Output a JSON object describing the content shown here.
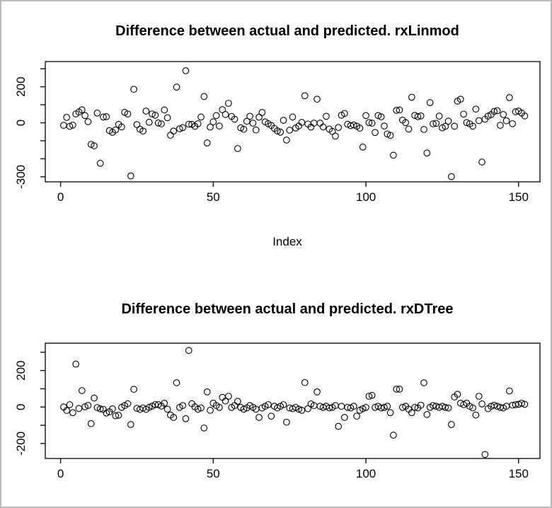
{
  "window": {
    "background": "#ffffff",
    "frame_color": "#b9b9b9",
    "point_color": "#000000",
    "axis_color": "#000000"
  },
  "chart_data": [
    {
      "id": "linmod",
      "type": "scatter",
      "title": "Difference between actual and predicted. rxLinmod",
      "xlabel": "Index",
      "ylabel": "",
      "marker": "open-circle",
      "grid": false,
      "xlim": [
        -5,
        157
      ],
      "ylim": [
        -328,
        340
      ],
      "x_ticks": [
        {
          "v": 0,
          "label": "0"
        },
        {
          "v": 50,
          "label": "50"
        },
        {
          "v": 100,
          "label": "100"
        },
        {
          "v": 150,
          "label": "150"
        }
      ],
      "y_ticks": [
        {
          "v": 300,
          "label": ""
        },
        {
          "v": 200,
          "label": "200"
        },
        {
          "v": 100,
          "label": ""
        },
        {
          "v": 0,
          "label": "0"
        },
        {
          "v": -100,
          "label": ""
        },
        {
          "v": -200,
          "label": ""
        },
        {
          "v": -300,
          "label": "-300"
        }
      ],
      "x_start": 1,
      "values": [
        -14,
        30,
        -20,
        -13,
        49,
        60,
        72,
        40,
        6,
        -120,
        -128,
        54,
        -225,
        32,
        34,
        -44,
        -53,
        -40,
        -9,
        -23,
        58,
        49,
        -295,
        186,
        -10,
        -36,
        -46,
        65,
        3,
        49,
        42,
        -1,
        -6,
        71,
        28,
        -69,
        -46,
        198,
        -33,
        -27,
        289,
        -8,
        -9,
        -20,
        -5,
        32,
        146,
        -112,
        -24,
        5,
        40,
        -18,
        73,
        46,
        108,
        35,
        20,
        -143,
        -28,
        -36,
        8,
        36,
        -2,
        -40,
        31,
        57,
        5,
        -5,
        -15,
        -31,
        -45,
        -52,
        14,
        -96,
        -41,
        32,
        -29,
        -18,
        2,
        150,
        -7,
        -24,
        -2,
        131,
        -2,
        -23,
        36,
        -35,
        -48,
        -74,
        -26,
        42,
        52,
        -8,
        -16,
        -12,
        -19,
        -30,
        -135,
        40,
        1,
        -2,
        -54,
        40,
        33,
        -18,
        -62,
        -70,
        -180,
        69,
        71,
        15,
        1,
        -35,
        142,
        41,
        34,
        38,
        -37,
        -168,
        112,
        -6,
        -3,
        37,
        -28,
        -20,
        9,
        -299,
        -19,
        120,
        131,
        48,
        1,
        -6,
        -19,
        76,
        12,
        -218,
        20,
        37,
        45,
        63,
        67,
        -14,
        46,
        11,
        140,
        -5,
        61,
        65,
        54,
        38
      ]
    },
    {
      "id": "dtree",
      "type": "scatter",
      "title": "Difference between actual and predicted. rxDTree",
      "xlabel": "",
      "ylabel": "",
      "marker": "open-circle",
      "grid": false,
      "xlim": [
        -5,
        157
      ],
      "ylim": [
        -282,
        350
      ],
      "x_ticks": [
        {
          "v": 0,
          "label": "0"
        },
        {
          "v": 50,
          "label": "50"
        },
        {
          "v": 100,
          "label": "100"
        },
        {
          "v": 150,
          "label": "150"
        }
      ],
      "y_ticks": [
        {
          "v": 300,
          "label": ""
        },
        {
          "v": 200,
          "label": "200"
        },
        {
          "v": 100,
          "label": ""
        },
        {
          "v": 0,
          "label": "0"
        },
        {
          "v": -100,
          "label": ""
        },
        {
          "v": -200,
          "label": "-200"
        }
      ],
      "x_start": 1,
      "values": [
        0,
        -19,
        13,
        -31,
        235,
        -8,
        90,
        1,
        9,
        -91,
        49,
        -3,
        -10,
        -13,
        -33,
        -26,
        -10,
        -48,
        -45,
        -2,
        8,
        18,
        -96,
        97,
        -7,
        -13,
        -5,
        -13,
        -2,
        5,
        13,
        13,
        5,
        21,
        -12,
        -44,
        -57,
        133,
        -2,
        8,
        -64,
        310,
        18,
        1,
        -12,
        -5,
        -115,
        83,
        -18,
        21,
        8,
        -2,
        53,
        33,
        59,
        -2,
        8,
        31,
        -2,
        -12,
        -5,
        8,
        -2,
        -12,
        -57,
        -5,
        4,
        13,
        -50,
        4,
        -5,
        4,
        13,
        -83,
        -5,
        -9,
        -2,
        -12,
        -18,
        134,
        -9,
        17,
        8,
        83,
        4,
        -2,
        4,
        -5,
        -2,
        8,
        -106,
        4,
        -57,
        -2,
        -5,
        4,
        -50,
        -18,
        -9,
        -2,
        59,
        64,
        -2,
        4,
        -5,
        -2,
        4,
        -31,
        -154,
        98,
        98,
        -2,
        4,
        -12,
        -31,
        -2,
        -5,
        10,
        133,
        -41,
        -2,
        8,
        4,
        -2,
        4,
        -2,
        -5,
        -96,
        55,
        70,
        21,
        13,
        21,
        4,
        -5,
        -44,
        59,
        17,
        -260,
        -9,
        4,
        10,
        4,
        -2,
        -5,
        4,
        88,
        10,
        13,
        15,
        21,
        15
      ]
    }
  ]
}
